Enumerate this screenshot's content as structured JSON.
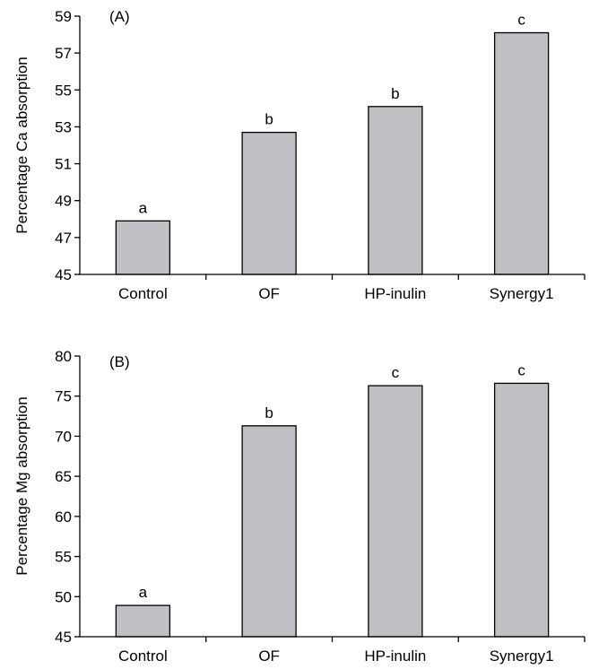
{
  "chart_data": [
    {
      "type": "bar",
      "panel_label": "(A)",
      "title": "",
      "xlabel": "",
      "ylabel": "Percentage Ca absorption",
      "categories": [
        "Control",
        "OF",
        "HP-inulin",
        "Synergy1"
      ],
      "values": [
        47.9,
        52.7,
        54.1,
        58.1
      ],
      "significance_letters": [
        "a",
        "b",
        "b",
        "c"
      ],
      "ylim": [
        45,
        59
      ],
      "yticks": [
        45,
        47,
        49,
        51,
        53,
        55,
        57,
        59
      ],
      "grid": false,
      "legend": "none",
      "bar_color": "#c0c0c4"
    },
    {
      "type": "bar",
      "panel_label": "(B)",
      "title": "",
      "xlabel": "",
      "ylabel": "Percentage Mg absorption",
      "categories": [
        "Control",
        "OF",
        "HP-inulin",
        "Synergy1"
      ],
      "values": [
        48.9,
        71.3,
        76.3,
        76.6
      ],
      "significance_letters": [
        "a",
        "b",
        "c",
        "c"
      ],
      "ylim": [
        45,
        80
      ],
      "yticks": [
        45,
        50,
        55,
        60,
        65,
        70,
        75,
        80
      ],
      "grid": false,
      "legend": "none",
      "bar_color": "#c0c0c4"
    }
  ]
}
